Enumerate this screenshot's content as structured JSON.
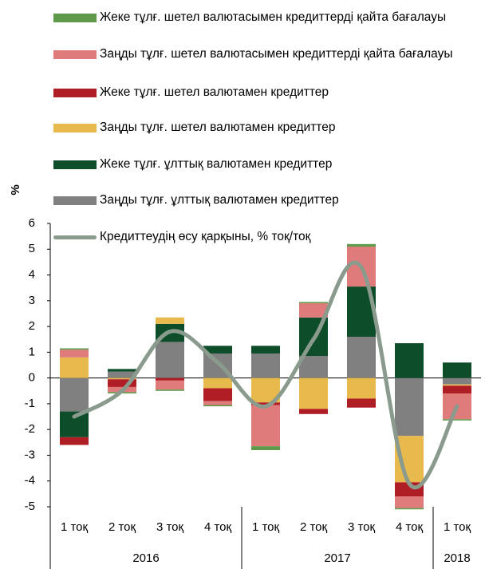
{
  "chart_data": {
    "type": "stacked-bar-line",
    "y_label": "%",
    "categories": [
      "1 тоқ",
      "2 тоқ",
      "3 тоқ",
      "4 тоқ",
      "1 тоқ",
      "2 тоқ",
      "3 тоқ",
      "4 тоқ",
      "1 тоқ"
    ],
    "groups": [
      {
        "label": "2016",
        "span": 4
      },
      {
        "label": "2017",
        "span": 4
      },
      {
        "label": "2018",
        "span": 1
      }
    ],
    "series": [
      {
        "name": "Жеке тұлғ. шетел валютасымен кредиттерді қайта бағалауы",
        "color": "#5f9a4b",
        "values": [
          0.05,
          -0.05,
          -0.05,
          -0.05,
          -0.15,
          0.05,
          0.1,
          -0.05,
          -0.05
        ]
      },
      {
        "name": "Заңды тұлғ. шетел валютасымен кредиттерді қайта бағалауы",
        "color": "#e07b7b",
        "values": [
          0.3,
          -0.2,
          -0.35,
          -0.15,
          -1.6,
          0.55,
          1.55,
          -0.45,
          -1.0
        ]
      },
      {
        "name": "Жеке тұлғ. шетел валютамен кредиттер",
        "color": "#b01e25",
        "values": [
          -0.3,
          -0.3,
          -0.1,
          -0.5,
          -0.1,
          -0.2,
          -0.35,
          -0.55,
          -0.3
        ]
      },
      {
        "name": "Заңды тұлғ. шетел валютамен кредиттер",
        "color": "#e8b94c",
        "values": [
          0.8,
          -0.05,
          0.25,
          -0.4,
          -0.95,
          -1.2,
          -0.8,
          -1.8,
          -0.05
        ]
      },
      {
        "name": "Жеке тұлғ. ұлттық валютамен кредиттер",
        "color": "#0e4d29",
        "values": [
          -1.0,
          0.1,
          0.7,
          0.3,
          0.3,
          1.5,
          1.95,
          1.35,
          0.6
        ]
      },
      {
        "name": "Заңды тұлғ. ұлттық валютамен кредиттер",
        "color": "#808080",
        "values": [
          -1.3,
          0.25,
          1.4,
          0.95,
          0.95,
          0.85,
          1.6,
          -2.25,
          -0.25
        ]
      }
    ],
    "line": {
      "name": "Кредиттеудің өсу қарқыны, % тоқ/тоқ",
      "color": "#8a9b8d",
      "values": [
        -1.5,
        -0.5,
        1.8,
        0.6,
        -1.1,
        1.5,
        4.3,
        -4.1,
        -1.1
      ]
    },
    "ylim": [
      -5,
      6
    ],
    "yticks": [
      -5,
      -4,
      -3,
      -2,
      -1,
      0,
      1,
      2,
      3,
      4,
      5,
      6
    ]
  }
}
